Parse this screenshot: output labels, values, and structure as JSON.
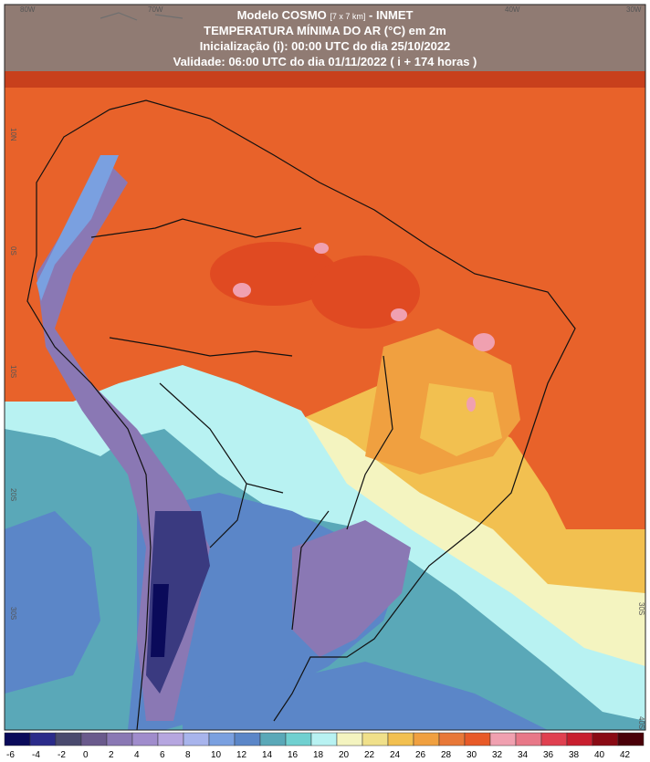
{
  "header": {
    "model": "Modelo COSMO",
    "resolution": "[7 x 7 km]",
    "source": "- INMET",
    "title": "TEMPERATURA MÍNIMA DO AR (°C) em 2m",
    "init": "Inicialização (i): 00:00 UTC do dia 25/10/2022",
    "valid": "Validade: 06:00 UTC do dia 01/11/2022 ( i + 174 horas )"
  },
  "grid_labels": {
    "top": [
      "80W",
      "70W",
      "40W",
      "30W"
    ],
    "left": [
      "10N",
      "0S",
      "10S",
      "20S",
      "30S"
    ],
    "right": [
      "30S",
      "40S"
    ]
  },
  "colorbar": {
    "labels": [
      -6,
      -4,
      -2,
      0,
      2,
      4,
      6,
      8,
      10,
      12,
      14,
      16,
      18,
      20,
      22,
      24,
      26,
      28,
      30,
      32,
      34,
      36,
      38,
      40,
      42
    ],
    "colors": [
      "#0a0a5a",
      "#2b2b8a",
      "#4a4a6e",
      "#6a5a8c",
      "#8a78b4",
      "#a08ccc",
      "#b6a6e0",
      "#a8b4ec",
      "#7aa0e0",
      "#5b86c8",
      "#5aa8b8",
      "#70d0d0",
      "#b8f2f2",
      "#f4f4c0",
      "#f0e08a",
      "#f2c050",
      "#f0a040",
      "#e87838",
      "#e85a28",
      "#f0a0b0",
      "#e87888",
      "#e04050",
      "#c81e2e",
      "#8a0a14",
      "#4a0008"
    ]
  }
}
